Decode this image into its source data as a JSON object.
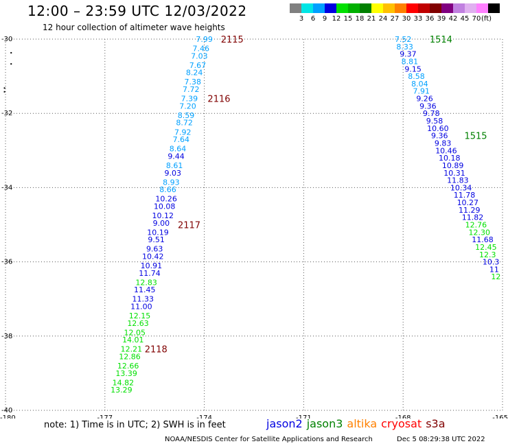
{
  "header": {
    "title": "12:00 – 23:59 UTC 12/03/2022",
    "subtitle": "12 hour collection of altimeter wave heights",
    "colorbar": {
      "colors": [
        "#808080",
        "#00e5e5",
        "#00a0ff",
        "#0000e0",
        "#00e000",
        "#00b000",
        "#008000",
        "#ffff00",
        "#ffc000",
        "#ff8000",
        "#ff0000",
        "#c00000",
        "#800000",
        "#800080",
        "#c080e0",
        "#e0b0f0",
        "#ff80ff",
        "#000000"
      ],
      "ticks": [
        "3",
        "6",
        "9",
        "12",
        "15",
        "18",
        "21",
        "24",
        "27",
        "30",
        "33",
        "36",
        "39",
        "42",
        "45",
        "70"
      ],
      "unit": "(ft)"
    }
  },
  "chart_data": {
    "type": "scatter",
    "title": "12 hour collection of altimeter wave heights",
    "units": "ft",
    "xlim": [
      -180,
      -165
    ],
    "ylim": [
      -40,
      -30
    ],
    "x_ticks": [
      "-180",
      "-177",
      "-174",
      "-171",
      "-168",
      "-165"
    ],
    "y_ticks": [
      "-30",
      "-32",
      "-34",
      "-36",
      "-38",
      "-40"
    ],
    "grid": true,
    "series": [
      {
        "name": "jason3",
        "color_note": "value color follows colorbar",
        "points": [
          [
            -174.0,
            -30.0,
            "7.99"
          ],
          [
            -174.1,
            -30.25,
            "7.46"
          ],
          [
            -174.15,
            -30.45,
            "7.03"
          ],
          [
            -174.2,
            -30.7,
            "7.67"
          ],
          [
            -174.3,
            -30.9,
            "8.24"
          ],
          [
            -174.35,
            -31.15,
            "7.38"
          ],
          [
            -174.4,
            -31.35,
            "7.72"
          ],
          [
            -174.45,
            -31.6,
            "7.39"
          ],
          [
            -174.5,
            -31.8,
            "7.20"
          ],
          [
            -174.55,
            -32.05,
            "8.59"
          ],
          [
            -174.6,
            -32.25,
            "8.72"
          ],
          [
            -174.65,
            -32.5,
            "7.92"
          ],
          [
            -174.7,
            -32.7,
            "7.64"
          ],
          [
            -174.8,
            -32.95,
            "8.64"
          ],
          [
            -174.85,
            -33.15,
            "9.44"
          ],
          [
            -174.9,
            -33.4,
            "8.61"
          ],
          [
            -174.95,
            -33.6,
            "9.03"
          ],
          [
            -175.0,
            -33.85,
            "8.93"
          ],
          [
            -175.1,
            -34.05,
            "8.66"
          ],
          [
            -175.15,
            -34.3,
            "10.26"
          ],
          [
            -175.2,
            -34.5,
            "10.08"
          ],
          [
            -175.25,
            -34.75,
            "10.12"
          ],
          [
            -175.3,
            -34.95,
            "9.00"
          ],
          [
            -175.4,
            -35.2,
            "10.19"
          ],
          [
            -175.45,
            -35.4,
            "9.51"
          ],
          [
            -175.5,
            -35.65,
            "9.63"
          ],
          [
            -175.55,
            -35.85,
            "10.42"
          ],
          [
            -175.6,
            -36.1,
            "10.91"
          ],
          [
            -175.65,
            -36.3,
            "11.74"
          ],
          [
            -175.75,
            -36.55,
            "12.83"
          ],
          [
            -175.8,
            -36.75,
            "11.45"
          ],
          [
            -175.85,
            -37.0,
            "11.33"
          ],
          [
            -175.9,
            -37.2,
            "11.00"
          ],
          [
            -175.95,
            -37.45,
            "12.15"
          ],
          [
            -176.0,
            -37.65,
            "12.63"
          ],
          [
            -176.1,
            -37.9,
            "12.05"
          ],
          [
            -176.15,
            -38.1,
            "14.01"
          ],
          [
            -176.2,
            -38.35,
            "12.21"
          ],
          [
            -176.25,
            -38.55,
            "12.86"
          ],
          [
            -176.3,
            -38.8,
            "12.66"
          ],
          [
            -176.35,
            -39.0,
            "13.39"
          ],
          [
            -176.45,
            -39.25,
            "14.82"
          ],
          [
            -176.5,
            -39.45,
            "13.29"
          ]
        ]
      },
      {
        "name": "jason2",
        "color_note": "value color follows colorbar",
        "points": [
          [
            -168.0,
            -30.0,
            "7.52"
          ],
          [
            -167.95,
            -30.2,
            "8.33"
          ],
          [
            -167.85,
            -30.4,
            "9.37"
          ],
          [
            -167.8,
            -30.6,
            "8.81"
          ],
          [
            -167.7,
            -30.8,
            "9.15"
          ],
          [
            -167.6,
            -31.0,
            "8.58"
          ],
          [
            -167.5,
            -31.2,
            "8.04"
          ],
          [
            -167.45,
            -31.4,
            "7.91"
          ],
          [
            -167.35,
            -31.6,
            "9.26"
          ],
          [
            -167.25,
            -31.8,
            "9.36"
          ],
          [
            -167.15,
            -32.0,
            "9.78"
          ],
          [
            -167.05,
            -32.2,
            "9.58"
          ],
          [
            -166.95,
            -32.4,
            "10.60"
          ],
          [
            -166.9,
            -32.6,
            "9.36"
          ],
          [
            -166.8,
            -32.8,
            "9.83"
          ],
          [
            -166.7,
            -33.0,
            "10.46"
          ],
          [
            -166.6,
            -33.2,
            "10.18"
          ],
          [
            -166.5,
            -33.4,
            "10.89"
          ],
          [
            -166.45,
            -33.6,
            "10.31"
          ],
          [
            -166.35,
            -33.8,
            "11.83"
          ],
          [
            -166.25,
            -34.0,
            "10.34"
          ],
          [
            -166.15,
            -34.2,
            "11.78"
          ],
          [
            -166.05,
            -34.4,
            "10.27"
          ],
          [
            -166.0,
            -34.6,
            "11.29"
          ],
          [
            -165.9,
            -34.8,
            "11.82"
          ],
          [
            -165.8,
            -35.0,
            "12.76"
          ],
          [
            -165.7,
            -35.2,
            "12.30"
          ],
          [
            -165.6,
            -35.4,
            "11.68"
          ],
          [
            -165.5,
            -35.6,
            "12.45"
          ],
          [
            -165.45,
            -35.8,
            "12.3"
          ],
          [
            -165.35,
            -36.0,
            "10.3"
          ],
          [
            -165.25,
            -36.2,
            "11"
          ],
          [
            -165.2,
            -36.4,
            "12"
          ]
        ]
      }
    ],
    "time_annotations": [
      {
        "x": -173.5,
        "y": -30.0,
        "text": "2115",
        "color": "#800000"
      },
      {
        "x": -173.9,
        "y": -31.6,
        "text": "2116",
        "color": "#800000"
      },
      {
        "x": -174.8,
        "y": -35.0,
        "text": "2117",
        "color": "#800000"
      },
      {
        "x": -175.8,
        "y": -38.35,
        "text": "2118",
        "color": "#800000"
      },
      {
        "x": -167.2,
        "y": -30.0,
        "text": "1514",
        "color": "#008000"
      },
      {
        "x": -166.15,
        "y": -32.6,
        "text": "1515",
        "color": "#008000"
      }
    ],
    "land_dots": [
      [
        -179.85,
        -30.35
      ],
      [
        -179.85,
        -30.65
      ],
      [
        -180.05,
        -31.3
      ],
      [
        -180.05,
        -31.4
      ]
    ]
  },
  "footer": {
    "note": "note:  1) Time is in UTC;  2) SWH is in feet",
    "legend": [
      {
        "label": "jason2",
        "color": "#0000e0"
      },
      {
        "label": "jason3",
        "color": "#008000"
      },
      {
        "label": "altika",
        "color": "#ff8000"
      },
      {
        "label": "cryosat",
        "color": "#ff0000"
      },
      {
        "label": "s3a",
        "color": "#800000"
      }
    ],
    "credit": "NOAA/NESDIS Center for Satellite Applications and Research",
    "timestamp": "Dec  5 08:29:38 UTC 2022"
  }
}
